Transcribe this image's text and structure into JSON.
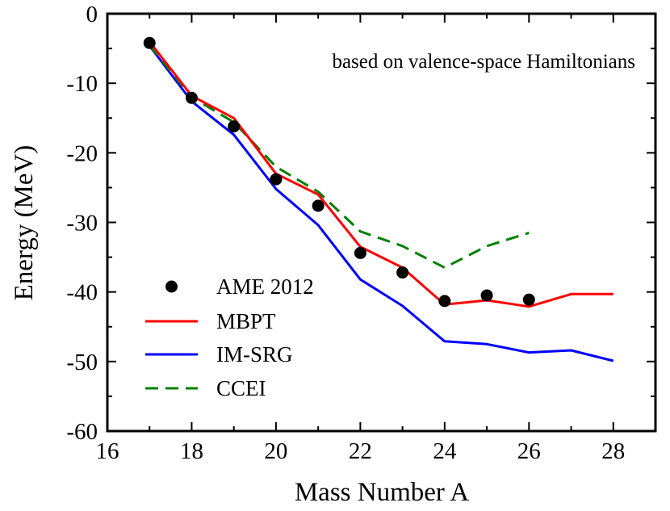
{
  "chart_data": {
    "type": "line",
    "title": "",
    "annotation": "based on valence-space Hamiltonians",
    "xlabel": "Mass Number A",
    "ylabel": "Energy (MeV)",
    "xlim": [
      16,
      29
    ],
    "ylim": [
      -60,
      0
    ],
    "xticks": [
      16,
      18,
      20,
      22,
      24,
      26,
      28
    ],
    "yticks": [
      0,
      -10,
      -20,
      -30,
      -40,
      -50,
      -60
    ],
    "legend_position": "bottom-left",
    "series": [
      {
        "name": "AME 2012",
        "style": "markers",
        "color": "#000000",
        "x": [
          17,
          18,
          19,
          20,
          21,
          22,
          23,
          24,
          25,
          26
        ],
        "y": [
          -4.2,
          -12.1,
          -16.2,
          -23.8,
          -27.6,
          -34.4,
          -37.2,
          -41.3,
          -40.5,
          -41.1
        ]
      },
      {
        "name": "MBPT",
        "style": "solid",
        "color": "#ff0000",
        "x": [
          17,
          18,
          19,
          20,
          21,
          22,
          23,
          24,
          25,
          26,
          27,
          28
        ],
        "y": [
          -4.0,
          -11.8,
          -15.0,
          -23.0,
          -26.0,
          -33.5,
          -36.5,
          -41.8,
          -41.2,
          -42.1,
          -40.3,
          -40.3
        ]
      },
      {
        "name": "IM-SRG",
        "style": "solid",
        "color": "#0000ff",
        "x": [
          17,
          18,
          19,
          20,
          21,
          22,
          23,
          24,
          25,
          26,
          27,
          28
        ],
        "y": [
          -4.6,
          -12.6,
          -17.4,
          -25.2,
          -30.4,
          -38.2,
          -42.0,
          -47.1,
          -47.5,
          -48.7,
          -48.4,
          -49.9
        ]
      },
      {
        "name": "CCEI",
        "style": "dashed",
        "color": "#008000",
        "x": [
          17,
          18,
          19,
          20,
          21,
          22,
          23,
          24,
          25,
          26
        ],
        "y": [
          -4.5,
          -12.0,
          -15.6,
          -22.0,
          -25.6,
          -31.3,
          -33.4,
          -36.5,
          -33.4,
          -31.5
        ]
      }
    ]
  }
}
